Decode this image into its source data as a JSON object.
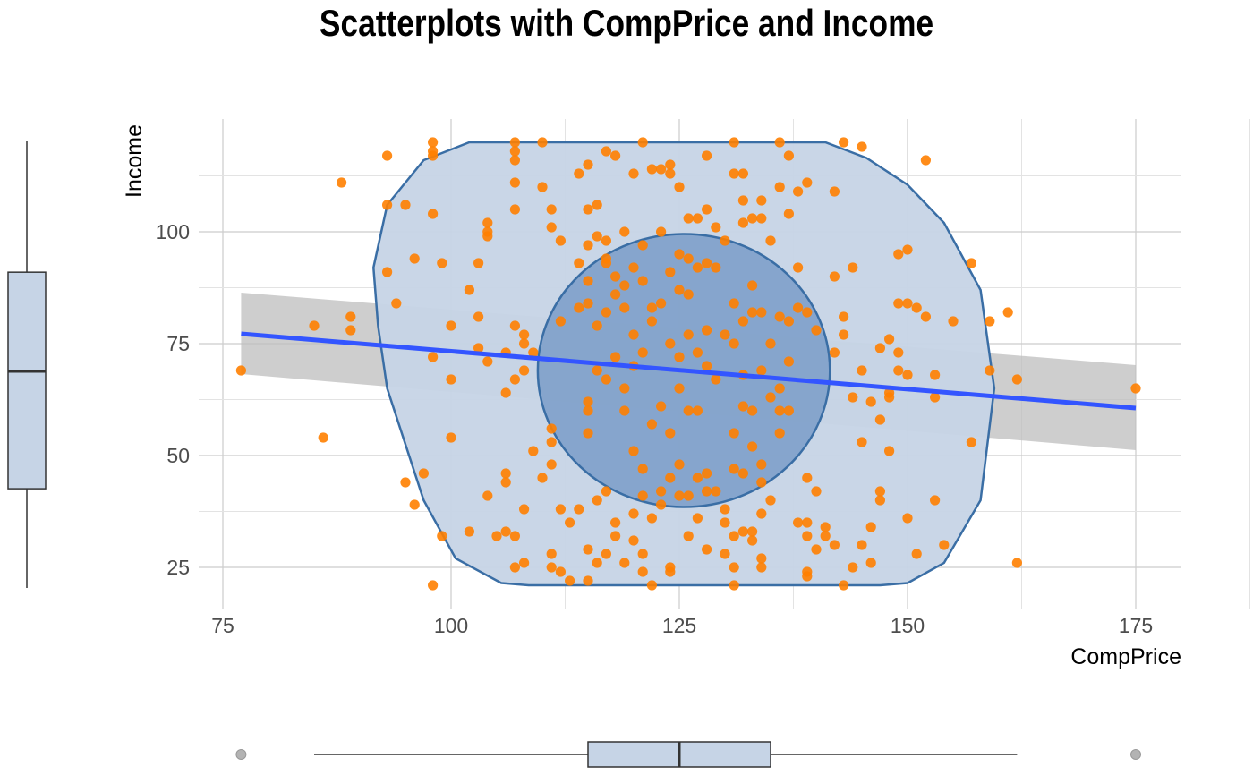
{
  "chart_data": {
    "type": "scatter",
    "title": "Scatterplots with CompPrice and Income",
    "xlabel": "CompPrice",
    "ylabel": "Income",
    "xlim": [
      75,
      180
    ],
    "ylim": [
      18,
      122
    ],
    "x_ticks": [
      75,
      100,
      125,
      150,
      175
    ],
    "y_ticks": [
      25,
      50,
      75,
      100
    ],
    "grid": true,
    "colors": {
      "points": "#ff8000",
      "regression": "#3355ff",
      "confidence_band": "#bdbdbd",
      "hull_fill": "#c6d4e6",
      "hull_stroke": "#3a6ea5",
      "inner_fill": "#7a9cc8",
      "boxplot_fill": "#c6d4e6"
    },
    "regression": {
      "x": [
        77,
        175
      ],
      "y": [
        77.2,
        60.6
      ]
    },
    "confidence_band": {
      "x": [
        77,
        175
      ],
      "upper": [
        86.4,
        70.2
      ],
      "lower": [
        68.2,
        51.2
      ]
    },
    "hull": {
      "x": [
        105.5,
        108.5,
        143,
        147,
        150,
        154,
        158,
        159.5,
        158,
        154,
        150,
        145.5,
        141,
        102,
        97,
        93,
        91.5,
        92,
        93,
        97,
        100.5,
        105.5
      ],
      "y": [
        21.5,
        21,
        21,
        21,
        21.5,
        26,
        40,
        65,
        87,
        102,
        110.5,
        116.5,
        120,
        120,
        116,
        106,
        92,
        79,
        65,
        40,
        27,
        21.5
      ]
    },
    "inner_ellipse": {
      "cx": 125.5,
      "cy": 69,
      "rx": 16,
      "ry": 30.5
    },
    "marginal_boxplots": {
      "x": {
        "min": 85,
        "q1": 115,
        "median": 125,
        "q3": 135,
        "max": 162,
        "outliers": [
          77,
          175
        ]
      },
      "y": {
        "min": 21,
        "q1": 43,
        "median": 69,
        "q3": 91,
        "max": 120
      }
    },
    "points": [
      [
        77,
        69
      ],
      [
        85,
        79
      ],
      [
        86,
        54
      ],
      [
        88,
        111
      ],
      [
        89,
        81
      ],
      [
        89,
        78
      ],
      [
        93,
        117
      ],
      [
        93,
        106
      ],
      [
        93,
        91
      ],
      [
        94,
        84
      ],
      [
        95,
        106
      ],
      [
        95,
        44
      ],
      [
        96,
        94
      ],
      [
        96,
        39
      ],
      [
        97,
        46
      ],
      [
        98,
        120
      ],
      [
        98,
        118
      ],
      [
        98,
        117
      ],
      [
        98,
        104
      ],
      [
        98,
        72
      ],
      [
        98,
        21
      ],
      [
        99,
        93
      ],
      [
        99,
        32
      ],
      [
        100,
        79
      ],
      [
        100,
        67
      ],
      [
        100,
        54
      ],
      [
        102,
        87
      ],
      [
        102,
        33
      ],
      [
        103,
        93
      ],
      [
        103,
        81
      ],
      [
        103,
        74
      ],
      [
        104,
        102
      ],
      [
        104,
        100
      ],
      [
        104,
        99
      ],
      [
        104,
        71
      ],
      [
        104,
        41
      ],
      [
        105,
        32
      ],
      [
        106,
        73
      ],
      [
        106,
        64
      ],
      [
        106,
        46
      ],
      [
        106,
        44
      ],
      [
        106,
        33
      ],
      [
        107,
        120
      ],
      [
        107,
        118
      ],
      [
        107,
        116
      ],
      [
        107,
        111
      ],
      [
        107,
        105
      ],
      [
        107,
        79
      ],
      [
        107,
        67
      ],
      [
        107,
        32
      ],
      [
        107,
        25
      ],
      [
        108,
        77
      ],
      [
        108,
        75
      ],
      [
        108,
        69
      ],
      [
        108,
        38
      ],
      [
        108,
        26
      ],
      [
        109,
        73
      ],
      [
        109,
        51
      ],
      [
        110,
        120
      ],
      [
        110,
        110
      ],
      [
        110,
        45
      ],
      [
        111,
        105
      ],
      [
        111,
        101
      ],
      [
        111,
        56
      ],
      [
        111,
        53
      ],
      [
        111,
        48
      ],
      [
        111,
        28
      ],
      [
        111,
        25
      ],
      [
        112,
        98
      ],
      [
        112,
        80
      ],
      [
        112,
        38
      ],
      [
        112,
        24
      ],
      [
        113,
        35
      ],
      [
        113,
        22
      ],
      [
        114,
        113
      ],
      [
        114,
        93
      ],
      [
        114,
        83
      ],
      [
        114,
        38
      ],
      [
        115,
        115
      ],
      [
        115,
        105
      ],
      [
        115,
        97
      ],
      [
        115,
        89
      ],
      [
        115,
        84
      ],
      [
        115,
        62
      ],
      [
        115,
        60
      ],
      [
        115,
        55
      ],
      [
        115,
        29
      ],
      [
        115,
        22
      ],
      [
        116,
        106
      ],
      [
        116,
        99
      ],
      [
        116,
        79
      ],
      [
        116,
        69
      ],
      [
        116,
        40
      ],
      [
        116,
        26
      ],
      [
        117,
        118
      ],
      [
        117,
        98
      ],
      [
        117,
        94
      ],
      [
        117,
        93
      ],
      [
        117,
        82
      ],
      [
        117,
        67
      ],
      [
        117,
        42
      ],
      [
        117,
        28
      ],
      [
        118,
        117
      ],
      [
        118,
        90
      ],
      [
        118,
        86
      ],
      [
        118,
        72
      ],
      [
        118,
        35
      ],
      [
        118,
        32
      ],
      [
        119,
        100
      ],
      [
        119,
        88
      ],
      [
        119,
        83
      ],
      [
        119,
        65
      ],
      [
        119,
        60
      ],
      [
        119,
        26
      ],
      [
        120,
        113
      ],
      [
        120,
        92
      ],
      [
        120,
        77
      ],
      [
        120,
        70
      ],
      [
        120,
        51
      ],
      [
        120,
        31
      ],
      [
        120,
        37
      ],
      [
        121,
        120
      ],
      [
        121,
        97
      ],
      [
        121,
        89
      ],
      [
        121,
        73
      ],
      [
        121,
        47
      ],
      [
        121,
        41
      ],
      [
        121,
        24
      ],
      [
        121,
        28
      ],
      [
        122,
        114
      ],
      [
        122,
        83
      ],
      [
        122,
        80
      ],
      [
        122,
        57
      ],
      [
        122,
        36
      ],
      [
        122,
        21
      ],
      [
        123,
        114
      ],
      [
        123,
        100
      ],
      [
        123,
        84
      ],
      [
        123,
        61
      ],
      [
        123,
        42
      ],
      [
        123,
        39
      ],
      [
        124,
        115
      ],
      [
        124,
        113
      ],
      [
        124,
        91
      ],
      [
        124,
        75
      ],
      [
        124,
        55
      ],
      [
        124,
        45
      ],
      [
        124,
        24
      ],
      [
        124,
        25
      ],
      [
        125,
        110
      ],
      [
        125,
        95
      ],
      [
        125,
        87
      ],
      [
        125,
        72
      ],
      [
        125,
        65
      ],
      [
        125,
        48
      ],
      [
        125,
        41
      ],
      [
        126,
        103
      ],
      [
        126,
        94
      ],
      [
        126,
        86
      ],
      [
        126,
        77
      ],
      [
        126,
        60
      ],
      [
        126,
        41
      ],
      [
        126,
        32
      ],
      [
        127,
        103
      ],
      [
        127,
        92
      ],
      [
        127,
        73
      ],
      [
        127,
        60
      ],
      [
        127,
        45
      ],
      [
        127,
        36
      ],
      [
        128,
        117
      ],
      [
        128,
        105
      ],
      [
        128,
        93
      ],
      [
        128,
        78
      ],
      [
        128,
        70
      ],
      [
        128,
        46
      ],
      [
        128,
        42
      ],
      [
        128,
        29
      ],
      [
        129,
        101
      ],
      [
        129,
        92
      ],
      [
        129,
        67
      ],
      [
        129,
        42
      ],
      [
        130,
        98
      ],
      [
        130,
        77
      ],
      [
        130,
        38
      ],
      [
        130,
        35
      ],
      [
        130,
        28
      ],
      [
        131,
        120
      ],
      [
        131,
        113
      ],
      [
        131,
        84
      ],
      [
        131,
        75
      ],
      [
        131,
        55
      ],
      [
        131,
        47
      ],
      [
        131,
        32
      ],
      [
        131,
        25
      ],
      [
        131,
        21
      ],
      [
        132,
        113
      ],
      [
        132,
        107
      ],
      [
        132,
        102
      ],
      [
        132,
        80
      ],
      [
        132,
        68
      ],
      [
        132,
        61
      ],
      [
        132,
        46
      ],
      [
        132,
        33
      ],
      [
        133,
        103
      ],
      [
        133,
        88
      ],
      [
        133,
        82
      ],
      [
        133,
        60
      ],
      [
        133,
        52
      ],
      [
        133,
        33
      ],
      [
        133,
        31
      ],
      [
        134,
        107
      ],
      [
        134,
        103
      ],
      [
        134,
        82
      ],
      [
        134,
        69
      ],
      [
        134,
        48
      ],
      [
        134,
        44
      ],
      [
        134,
        37
      ],
      [
        134,
        27
      ],
      [
        134,
        25
      ],
      [
        135,
        98
      ],
      [
        135,
        75
      ],
      [
        135,
        63
      ],
      [
        135,
        40
      ],
      [
        136,
        120
      ],
      [
        136,
        110
      ],
      [
        136,
        81
      ],
      [
        136,
        65
      ],
      [
        136,
        60
      ],
      [
        136,
        55
      ],
      [
        137,
        117
      ],
      [
        137,
        104
      ],
      [
        137,
        80
      ],
      [
        137,
        71
      ],
      [
        137,
        60
      ],
      [
        138,
        109
      ],
      [
        138,
        92
      ],
      [
        138,
        83
      ],
      [
        138,
        35
      ],
      [
        139,
        111
      ],
      [
        139,
        82
      ],
      [
        139,
        45
      ],
      [
        139,
        35
      ],
      [
        139,
        32
      ],
      [
        139,
        24
      ],
      [
        139,
        23
      ],
      [
        140,
        78
      ],
      [
        140,
        42
      ],
      [
        140,
        29
      ],
      [
        141,
        34
      ],
      [
        141,
        32
      ],
      [
        142,
        109
      ],
      [
        142,
        90
      ],
      [
        142,
        73
      ],
      [
        142,
        30
      ],
      [
        143,
        120
      ],
      [
        143,
        81
      ],
      [
        143,
        77
      ],
      [
        143,
        21
      ],
      [
        144,
        92
      ],
      [
        144,
        63
      ],
      [
        144,
        25
      ],
      [
        145,
        119
      ],
      [
        145,
        69
      ],
      [
        145,
        53
      ],
      [
        145,
        30
      ],
      [
        146,
        62
      ],
      [
        146,
        34
      ],
      [
        146,
        26
      ],
      [
        147,
        74
      ],
      [
        147,
        58
      ],
      [
        147,
        42
      ],
      [
        147,
        40
      ],
      [
        148,
        76
      ],
      [
        148,
        64
      ],
      [
        148,
        63
      ],
      [
        148,
        51
      ],
      [
        149,
        95
      ],
      [
        149,
        84
      ],
      [
        149,
        73
      ],
      [
        149,
        69
      ],
      [
        150,
        96
      ],
      [
        150,
        84
      ],
      [
        150,
        68
      ],
      [
        150,
        36
      ],
      [
        151,
        83
      ],
      [
        151,
        28
      ],
      [
        152,
        116
      ],
      [
        152,
        81
      ],
      [
        153,
        68
      ],
      [
        153,
        63
      ],
      [
        153,
        40
      ],
      [
        154,
        30
      ],
      [
        155,
        80
      ],
      [
        157,
        93
      ],
      [
        157,
        53
      ],
      [
        159,
        80
      ],
      [
        159,
        69
      ],
      [
        161,
        82
      ],
      [
        162,
        67
      ],
      [
        162,
        26
      ],
      [
        175,
        65
      ]
    ]
  }
}
